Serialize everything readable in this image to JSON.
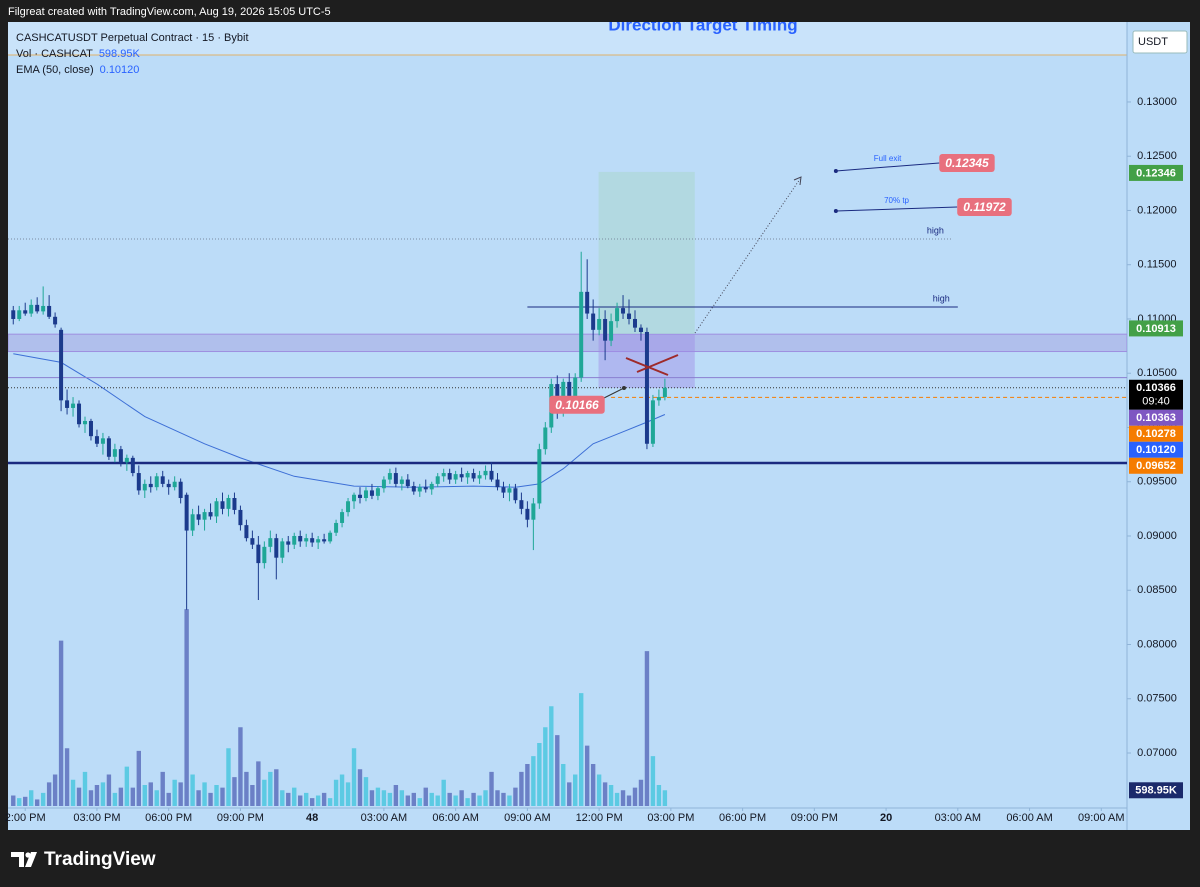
{
  "header": {
    "text": "Filgreat created with TradingView.com, Aug 19, 2026 15:05 UTC-5"
  },
  "chart_data": {
    "type": "candlestick",
    "title": "Direction Target Timing",
    "symbol": "CASHCATUSDT Perpetual Contract · 15 · Bybit",
    "legend": [
      {
        "name": "Vol · CASHCAT",
        "value": "598.95K"
      },
      {
        "name": "EMA (50, close)",
        "value": "0.10120"
      }
    ],
    "currency": "USDT",
    "up_color": "#1fa797",
    "down_color": "#1b3a8c",
    "volume_up_color": "#5ccae3",
    "volume_down_color": "#6b80c6",
    "ema_color": "#3d6fd6",
    "x": [
      -2,
      -1,
      0,
      1,
      2,
      3,
      4,
      5,
      6,
      7,
      8,
      9,
      10,
      11,
      12,
      13,
      14,
      15,
      16,
      17,
      18,
      19,
      20,
      21,
      22,
      23,
      24,
      25,
      26,
      27,
      28,
      29,
      30,
      31,
      32,
      33,
      34,
      35,
      36,
      37,
      38,
      39,
      40,
      41,
      42,
      43,
      44,
      45,
      46,
      47,
      48,
      49,
      50,
      51,
      52,
      53,
      54,
      55,
      56,
      57,
      58,
      59,
      60,
      61,
      62,
      63,
      64,
      65,
      66,
      67,
      68,
      69,
      70,
      71,
      72,
      73,
      74,
      75,
      76,
      77,
      78,
      79,
      80,
      81,
      82,
      83,
      84,
      85,
      86,
      87,
      88,
      89,
      90,
      91,
      92,
      93,
      94,
      95,
      96,
      97,
      98,
      99,
      100,
      101,
      102,
      103,
      104,
      105,
      106,
      107
    ],
    "ohlc": [
      [
        0.1108,
        0.1112,
        0.1095,
        0.11
      ],
      [
        0.11,
        0.1112,
        0.1098,
        0.1108
      ],
      [
        0.1108,
        0.1115,
        0.1103,
        0.1105
      ],
      [
        0.1105,
        0.1118,
        0.1102,
        0.1113
      ],
      [
        0.1113,
        0.112,
        0.1105,
        0.1107
      ],
      [
        0.1107,
        0.113,
        0.1104,
        0.1112
      ],
      [
        0.1112,
        0.1122,
        0.11,
        0.1102
      ],
      [
        0.1102,
        0.1106,
        0.1092,
        0.1095
      ],
      [
        0.109,
        0.1092,
        0.1015,
        0.1025
      ],
      [
        0.1025,
        0.1035,
        0.1012,
        0.1018
      ],
      [
        0.1018,
        0.1028,
        0.101,
        0.1022
      ],
      [
        0.1022,
        0.1025,
        0.1,
        0.1003
      ],
      [
        0.1003,
        0.101,
        0.0995,
        0.1006
      ],
      [
        0.1006,
        0.1008,
        0.0988,
        0.0992
      ],
      [
        0.0992,
        0.0998,
        0.0982,
        0.0985
      ],
      [
        0.0985,
        0.0995,
        0.0975,
        0.099
      ],
      [
        0.099,
        0.0992,
        0.097,
        0.0973
      ],
      [
        0.0973,
        0.0985,
        0.0968,
        0.098
      ],
      [
        0.098,
        0.0983,
        0.0964,
        0.0968
      ],
      [
        0.0968,
        0.0975,
        0.096,
        0.0972
      ],
      [
        0.0972,
        0.0974,
        0.0955,
        0.0958
      ],
      [
        0.0958,
        0.0965,
        0.0938,
        0.0942
      ],
      [
        0.0942,
        0.0952,
        0.0935,
        0.0948
      ],
      [
        0.0948,
        0.0955,
        0.094,
        0.0945
      ],
      [
        0.0945,
        0.0958,
        0.0942,
        0.0955
      ],
      [
        0.0955,
        0.096,
        0.0945,
        0.0948
      ],
      [
        0.0948,
        0.0952,
        0.0938,
        0.0945
      ],
      [
        0.0945,
        0.0955,
        0.0942,
        0.095
      ],
      [
        0.095,
        0.0953,
        0.093,
        0.0935
      ],
      [
        0.0938,
        0.094,
        0.0832,
        0.0905
      ],
      [
        0.0905,
        0.0925,
        0.09,
        0.092
      ],
      [
        0.092,
        0.0928,
        0.091,
        0.0915
      ],
      [
        0.0915,
        0.0925,
        0.0905,
        0.0922
      ],
      [
        0.0922,
        0.093,
        0.0915,
        0.0918
      ],
      [
        0.0918,
        0.0935,
        0.0912,
        0.0932
      ],
      [
        0.0932,
        0.094,
        0.092,
        0.0925
      ],
      [
        0.0925,
        0.0938,
        0.0918,
        0.0935
      ],
      [
        0.0935,
        0.094,
        0.092,
        0.0924
      ],
      [
        0.0924,
        0.0928,
        0.0905,
        0.091
      ],
      [
        0.091,
        0.0915,
        0.0895,
        0.0898
      ],
      [
        0.0898,
        0.0905,
        0.0888,
        0.0892
      ],
      [
        0.0892,
        0.09,
        0.0841,
        0.0875
      ],
      [
        0.0875,
        0.0895,
        0.087,
        0.089
      ],
      [
        0.089,
        0.0905,
        0.0885,
        0.0898
      ],
      [
        0.0898,
        0.0902,
        0.086,
        0.088
      ],
      [
        0.088,
        0.0898,
        0.0875,
        0.0895
      ],
      [
        0.0895,
        0.09,
        0.0885,
        0.0892
      ],
      [
        0.0892,
        0.0903,
        0.0888,
        0.09
      ],
      [
        0.09,
        0.0905,
        0.089,
        0.0895
      ],
      [
        0.0895,
        0.0902,
        0.089,
        0.0898
      ],
      [
        0.0898,
        0.0903,
        0.089,
        0.0894
      ],
      [
        0.0894,
        0.09,
        0.0888,
        0.0897
      ],
      [
        0.0897,
        0.0902,
        0.0893,
        0.0895
      ],
      [
        0.0895,
        0.0905,
        0.0893,
        0.0903
      ],
      [
        0.0903,
        0.0915,
        0.09,
        0.0912
      ],
      [
        0.0912,
        0.0925,
        0.0908,
        0.0922
      ],
      [
        0.0922,
        0.0935,
        0.0918,
        0.0932
      ],
      [
        0.0932,
        0.094,
        0.0925,
        0.0938
      ],
      [
        0.0938,
        0.0945,
        0.093,
        0.0935
      ],
      [
        0.0935,
        0.0945,
        0.0932,
        0.0942
      ],
      [
        0.0942,
        0.0948,
        0.0934,
        0.0937
      ],
      [
        0.0937,
        0.0946,
        0.0933,
        0.0944
      ],
      [
        0.0944,
        0.0955,
        0.094,
        0.0952
      ],
      [
        0.0952,
        0.0962,
        0.0948,
        0.0958
      ],
      [
        0.0958,
        0.0963,
        0.0945,
        0.0948
      ],
      [
        0.0948,
        0.0955,
        0.0942,
        0.0952
      ],
      [
        0.0952,
        0.0957,
        0.0944,
        0.0946
      ],
      [
        0.0946,
        0.095,
        0.0938,
        0.0941
      ],
      [
        0.0941,
        0.0948,
        0.0936,
        0.0945
      ],
      [
        0.0945,
        0.0952,
        0.094,
        0.0943
      ],
      [
        0.0943,
        0.095,
        0.0938,
        0.0948
      ],
      [
        0.0948,
        0.0958,
        0.0945,
        0.0955
      ],
      [
        0.0955,
        0.0962,
        0.095,
        0.0958
      ],
      [
        0.0958,
        0.0962,
        0.0948,
        0.0952
      ],
      [
        0.0952,
        0.096,
        0.0948,
        0.0957
      ],
      [
        0.0957,
        0.0963,
        0.095,
        0.0954
      ],
      [
        0.0954,
        0.096,
        0.0948,
        0.0958
      ],
      [
        0.0958,
        0.0962,
        0.095,
        0.0953
      ],
      [
        0.0953,
        0.096,
        0.0948,
        0.0956
      ],
      [
        0.0956,
        0.0965,
        0.0952,
        0.096
      ],
      [
        0.096,
        0.0968,
        0.095,
        0.0952
      ],
      [
        0.0952,
        0.0958,
        0.0942,
        0.0945
      ],
      [
        0.0945,
        0.095,
        0.0935,
        0.094
      ],
      [
        0.094,
        0.0948,
        0.0932,
        0.0944
      ],
      [
        0.0944,
        0.0948,
        0.093,
        0.0933
      ],
      [
        0.0933,
        0.094,
        0.092,
        0.0925
      ],
      [
        0.0925,
        0.0932,
        0.0908,
        0.0915
      ],
      [
        0.0915,
        0.0935,
        0.0887,
        0.093
      ],
      [
        0.093,
        0.0985,
        0.0925,
        0.098
      ],
      [
        0.098,
        0.1005,
        0.0975,
        0.1
      ],
      [
        0.1,
        0.1045,
        0.0995,
        0.104
      ],
      [
        0.104,
        0.1048,
        0.1008,
        0.1015
      ],
      [
        0.1015,
        0.1045,
        0.101,
        0.1042
      ],
      [
        0.1042,
        0.105,
        0.102,
        0.1025
      ],
      [
        0.1025,
        0.105,
        0.1018,
        0.1046
      ],
      [
        0.1046,
        0.1162,
        0.1042,
        0.1125
      ],
      [
        0.1125,
        0.1155,
        0.11,
        0.1105
      ],
      [
        0.1105,
        0.1118,
        0.108,
        0.109
      ],
      [
        0.109,
        0.111,
        0.1085,
        0.11
      ],
      [
        0.11,
        0.1108,
        0.1062,
        0.108
      ],
      [
        0.108,
        0.1105,
        0.1075,
        0.1098
      ],
      [
        0.1098,
        0.1115,
        0.1092,
        0.111
      ],
      [
        0.111,
        0.1122,
        0.11,
        0.1105
      ],
      [
        0.1105,
        0.1118,
        0.1095,
        0.11
      ],
      [
        0.11,
        0.1108,
        0.1088,
        0.1092
      ],
      [
        0.1092,
        0.1095,
        0.108,
        0.1088
      ],
      [
        0.1088,
        0.1092,
        0.098,
        0.0985
      ],
      [
        0.0985,
        0.103,
        0.0982,
        0.1025
      ],
      [
        0.1025,
        0.1035,
        0.102,
        0.1028
      ],
      [
        0.1028,
        0.1045,
        0.1025,
        0.10366
      ]
    ],
    "volumes": [
      400000,
      300000,
      350000,
      600000,
      250000,
      500000,
      900000,
      1200000,
      6300000,
      2200000,
      1000000,
      700000,
      1300000,
      600000,
      800000,
      900000,
      1200000,
      500000,
      700000,
      1500000,
      700000,
      2100000,
      800000,
      900000,
      600000,
      1300000,
      500000,
      1000000,
      900000,
      7500000,
      1200000,
      600000,
      900000,
      500000,
      800000,
      700000,
      2200000,
      1100000,
      3000000,
      1300000,
      800000,
      1700000,
      1000000,
      1300000,
      1400000,
      600000,
      500000,
      700000,
      400000,
      500000,
      300000,
      400000,
      500000,
      300000,
      1000000,
      1200000,
      900000,
      2200000,
      1400000,
      1100000,
      600000,
      700000,
      600000,
      500000,
      800000,
      600000,
      400000,
      500000,
      300000,
      700000,
      500000,
      400000,
      1000000,
      500000,
      400000,
      600000,
      300000,
      500000,
      400000,
      600000,
      1300000,
      600000,
      500000,
      400000,
      700000,
      1300000,
      1600000,
      1900000,
      2400000,
      3000000,
      3800000,
      2700000,
      1600000,
      900000,
      1200000,
      4300000,
      2300000,
      1600000,
      1200000,
      900000,
      800000,
      500000,
      600000,
      400000,
      700000,
      1000000,
      5900000,
      1900000,
      800000,
      598950
    ],
    "volume_lim": [
      0,
      8000000
    ],
    "ema": {
      "x": [
        -2,
        6,
        12,
        20,
        30,
        36,
        45,
        55,
        65,
        75,
        82,
        86,
        90,
        95,
        100,
        104,
        107
      ],
      "values": [
        0.1068,
        0.106,
        0.104,
        0.101,
        0.0985,
        0.0972,
        0.0955,
        0.0946,
        0.0945,
        0.0946,
        0.0945,
        0.0948,
        0.0962,
        0.0985,
        0.0996,
        0.1005,
        0.1012
      ]
    },
    "xlim": [
      -2.88,
      184.3
    ],
    "xticks": [
      {
        "value": 0,
        "label": "2:00 PM"
      },
      {
        "value": 12,
        "label": "03:00 PM"
      },
      {
        "value": 24,
        "label": "06:00 PM"
      },
      {
        "value": 36,
        "label": "09:00 PM"
      },
      48,
      {
        "value": 60,
        "label": "03:00 AM"
      },
      {
        "value": 72,
        "label": "06:00 AM"
      },
      {
        "value": 84,
        "label": "09:00 AM"
      },
      {
        "value": 96,
        "label": "12:00 PM"
      },
      {
        "value": 108,
        "label": "03:00 PM"
      },
      {
        "value": 120,
        "label": "06:00 PM"
      },
      {
        "value": 132,
        "label": "09:00 PM"
      },
      {
        "value": 144,
        "label": "20"
      },
      {
        "value": 156,
        "label": "03:00 AM"
      },
      {
        "value": 168,
        "label": "06:00 AM"
      },
      {
        "value": 180,
        "label": "09:00 AM"
      }
    ],
    "ylim": [
      0.06493,
      0.13737
    ],
    "yticks": [
      {
        "value": 0.13,
        "label": "0.13000"
      },
      {
        "value": 0.125,
        "label": "0.12500"
      },
      {
        "value": 0.12,
        "label": "0.12000"
      },
      {
        "value": 0.115,
        "label": "0.11500"
      },
      {
        "value": 0.11,
        "label": "0.11000"
      },
      {
        "value": 0.105,
        "label": "0.10500"
      },
      {
        "value": 0.1,
        "label": "0.10000"
      },
      {
        "value": 0.095,
        "label": "0.09500"
      },
      {
        "value": 0.09,
        "label": "0.09000"
      },
      {
        "value": 0.085,
        "label": "0.08500"
      },
      {
        "value": 0.08,
        "label": "0.08000"
      },
      {
        "value": 0.075,
        "label": "0.07500"
      },
      {
        "value": 0.07,
        "label": "0.07000"
      }
    ],
    "grid": false,
    "zone": {
      "from": 0.107,
      "to": 0.1086
    },
    "position": {
      "x": [
        95.9,
        112
      ],
      "target": 0.12355,
      "entry": 0.10862,
      "stop": 0.10364
    },
    "levels": [
      {
        "value": 0.09673,
        "color": "#1a2a80",
        "width": 2.5
      },
      {
        "value": 0.1046,
        "color": "#8a7fd0",
        "width": 1
      },
      {
        "value": 0.10366,
        "color": "#333333",
        "width": 1,
        "dash": "1 2"
      },
      {
        "value": 0.10278,
        "color": "#f57c00",
        "width": 1,
        "dash": "4 3",
        "from": 98
      },
      {
        "value": 0.11737,
        "color": "#7a8aa0",
        "width": 1,
        "dash": "1 2",
        "to": 155,
        "label": "high"
      },
      {
        "value": 0.1111,
        "color": "#1a2a80",
        "width": 1,
        "from": 84,
        "to": 156,
        "label": "high"
      }
    ],
    "targets": [
      {
        "text": "Full exit",
        "badge": "0.12345",
        "x": [
          135.6,
          152.9
        ],
        "y": [
          0.12364,
          0.12438
        ]
      },
      {
        "text": "70% tp",
        "badge": "0.11972",
        "x": [
          135.6,
          155.9
        ],
        "y": [
          0.11995,
          0.12032
        ]
      }
    ],
    "entry_label": {
      "label": "0.10166",
      "x": 92.3,
      "y": 0.1021
    },
    "price_labels": [
      {
        "value": 0.12346,
        "label": "0.12346",
        "color": "#43a047"
      },
      {
        "value": 0.10913,
        "label": "0.10913",
        "color": "#43a047"
      },
      {
        "value": 0.10366,
        "label": "0.10366",
        "color": "#000000",
        "sublabel": "09:40"
      },
      {
        "value": 0.10363,
        "label": "0.10363",
        "color": "#7e57c2"
      },
      {
        "value": 0.10278,
        "label": "0.10278",
        "color": "#f57c00"
      },
      {
        "value": 0.1012,
        "label": "0.10120",
        "color": "#2962ff"
      },
      {
        "value": 0.09652,
        "label": "0.09652",
        "color": "#f57c00"
      }
    ]
  },
  "footer": {
    "brand": "TradingView"
  }
}
